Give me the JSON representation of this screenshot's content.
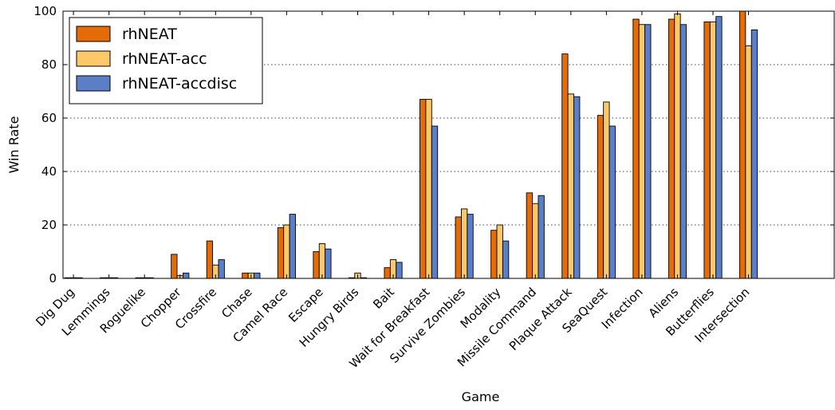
{
  "chart_data": {
    "type": "bar",
    "xlabel": "Game",
    "ylabel": "Win Rate",
    "ylim": [
      0,
      100
    ],
    "yticks": [
      0,
      20,
      40,
      60,
      80,
      100
    ],
    "grid": "horizontal dotted",
    "legend_position": "top-left",
    "categories": [
      "Dig Dug",
      "Lemmings",
      "Roguelike",
      "Chopper",
      "Crossfire",
      "Chase",
      "Camel Race",
      "Escape",
      "Hungry Birds",
      "Bait",
      "Wait for Breakfast",
      "Survive Zombies",
      "Modality",
      "Missile Command",
      "Plaque Attack",
      "SeaQuest",
      "Infection",
      "Aliens",
      "Butterflies",
      "Intersection"
    ],
    "series": [
      {
        "name": "rhNEAT",
        "color": "#e36c09",
        "values": [
          0,
          0,
          0,
          9,
          14,
          2,
          19,
          10,
          0,
          4,
          67,
          23,
          18,
          32,
          84,
          61,
          97,
          97,
          96,
          100
        ]
      },
      {
        "name": "rhNEAT-acc",
        "color": "#fdc867",
        "values": [
          0,
          0,
          0,
          1,
          5,
          2,
          20,
          13,
          2,
          7,
          67,
          26,
          20,
          28,
          69,
          66,
          95,
          99,
          96,
          87
        ]
      },
      {
        "name": "rhNEAT-accdisc",
        "color": "#5b7fc7",
        "values": [
          0,
          0,
          0,
          2,
          7,
          2,
          24,
          11,
          0,
          6,
          57,
          24,
          14,
          31,
          68,
          57,
          95,
          95,
          98,
          93
        ]
      }
    ]
  }
}
